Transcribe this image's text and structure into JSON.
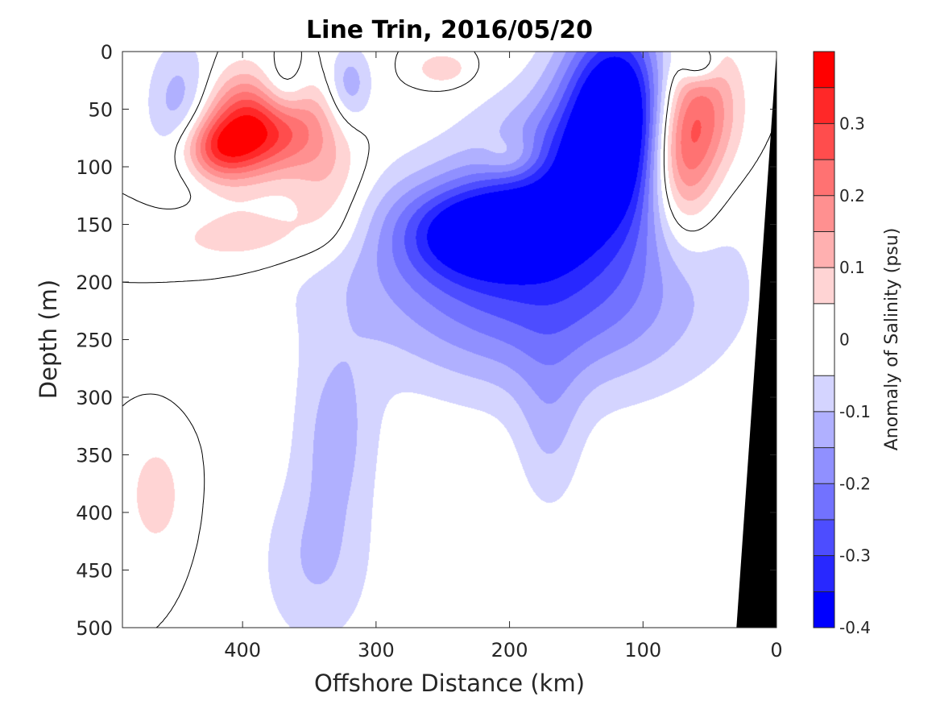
{
  "chart_data": {
    "type": "heatmap",
    "title": "Line Trin, 2016/05/20",
    "xlabel": "Offshore Distance (km)",
    "ylabel": "Depth (m)",
    "xlim": [
      490,
      0
    ],
    "ylim": [
      0,
      500
    ],
    "x_ticks": [
      "400",
      "300",
      "200",
      "100",
      "0"
    ],
    "x_tick_values": [
      400,
      300,
      200,
      100,
      0
    ],
    "y_ticks": [
      "0",
      "50",
      "100",
      "150",
      "200",
      "250",
      "300",
      "350",
      "400",
      "450",
      "500"
    ],
    "y_tick_values": [
      0,
      50,
      100,
      150,
      200,
      250,
      300,
      350,
      400,
      450,
      500
    ],
    "colorbar": {
      "label": "Anomaly of Salinity (psu)",
      "range": [
        -0.4,
        0.4
      ],
      "tick_labels": [
        "0.3",
        "0.2",
        "0.1",
        "0",
        "-0.1",
        "-0.2",
        "-0.3",
        "-0.4"
      ],
      "tick_values": [
        0.3,
        0.2,
        0.1,
        0,
        -0.1,
        -0.2,
        -0.3,
        -0.4
      ],
      "levels": [
        -0.4,
        -0.35,
        -0.3,
        -0.25,
        -0.2,
        -0.15,
        -0.1,
        -0.05,
        0.05,
        0.1,
        0.15,
        0.2,
        0.25,
        0.3,
        0.35,
        0.4
      ],
      "colors": [
        "#0000ff",
        "#2828ff",
        "#4d4dff",
        "#7272ff",
        "#9090ff",
        "#b0b0ff",
        "#d4d4ff",
        "#ffffff",
        "#ffd4d4",
        "#ffb0b0",
        "#ff9090",
        "#ff7272",
        "#ff4d4d",
        "#ff2828",
        "#ff0000"
      ]
    },
    "bathymetry_color": "#000000",
    "zero_contour_color": "#000000",
    "anomalies": [
      {
        "x": 445,
        "depth": 55,
        "sx": 18,
        "sd": 42,
        "amp": -0.17
      },
      {
        "x": 385,
        "depth": 62,
        "sx": 32,
        "sd": 30,
        "amp": 0.36
      },
      {
        "x": 420,
        "depth": 85,
        "sx": 22,
        "sd": 20,
        "amp": 0.24
      },
      {
        "x": 370,
        "depth": 35,
        "sx": 14,
        "sd": 22,
        "amp": -0.16
      },
      {
        "x": 320,
        "depth": 30,
        "sx": 12,
        "sd": 25,
        "amp": -0.14
      },
      {
        "x": 335,
        "depth": 115,
        "sx": 20,
        "sd": 35,
        "amp": 0.1
      },
      {
        "x": 395,
        "depth": 160,
        "sx": 50,
        "sd": 20,
        "amp": 0.09
      },
      {
        "x": 120,
        "depth": 45,
        "sx": 28,
        "sd": 55,
        "amp": -0.43
      },
      {
        "x": 150,
        "depth": 110,
        "sx": 48,
        "sd": 50,
        "amp": -0.25
      },
      {
        "x": 225,
        "depth": 155,
        "sx": 40,
        "sd": 28,
        "amp": -0.28
      },
      {
        "x": 205,
        "depth": 185,
        "sx": 95,
        "sd": 60,
        "amp": -0.18
      },
      {
        "x": 160,
        "depth": 230,
        "sx": 80,
        "sd": 55,
        "amp": -0.12
      },
      {
        "x": 170,
        "depth": 330,
        "sx": 18,
        "sd": 55,
        "amp": -0.09
      },
      {
        "x": 330,
        "depth": 330,
        "sx": 22,
        "sd": 55,
        "amp": -0.11
      },
      {
        "x": 345,
        "depth": 445,
        "sx": 30,
        "sd": 55,
        "amp": -0.1
      },
      {
        "x": 198,
        "depth": 92,
        "sx": 16,
        "sd": 14,
        "amp": 0.1
      },
      {
        "x": 72,
        "depth": 90,
        "sx": 18,
        "sd": 50,
        "amp": 0.3
      },
      {
        "x": 50,
        "depth": 50,
        "sx": 18,
        "sd": 40,
        "amp": 0.15
      },
      {
        "x": 58,
        "depth": 10,
        "sx": 10,
        "sd": 12,
        "amp": -0.15
      },
      {
        "x": 250,
        "depth": 15,
        "sx": 14,
        "sd": 10,
        "amp": 0.1
      },
      {
        "x": 465,
        "depth": 385,
        "sx": 12,
        "sd": 28,
        "amp": 0.1
      }
    ]
  }
}
